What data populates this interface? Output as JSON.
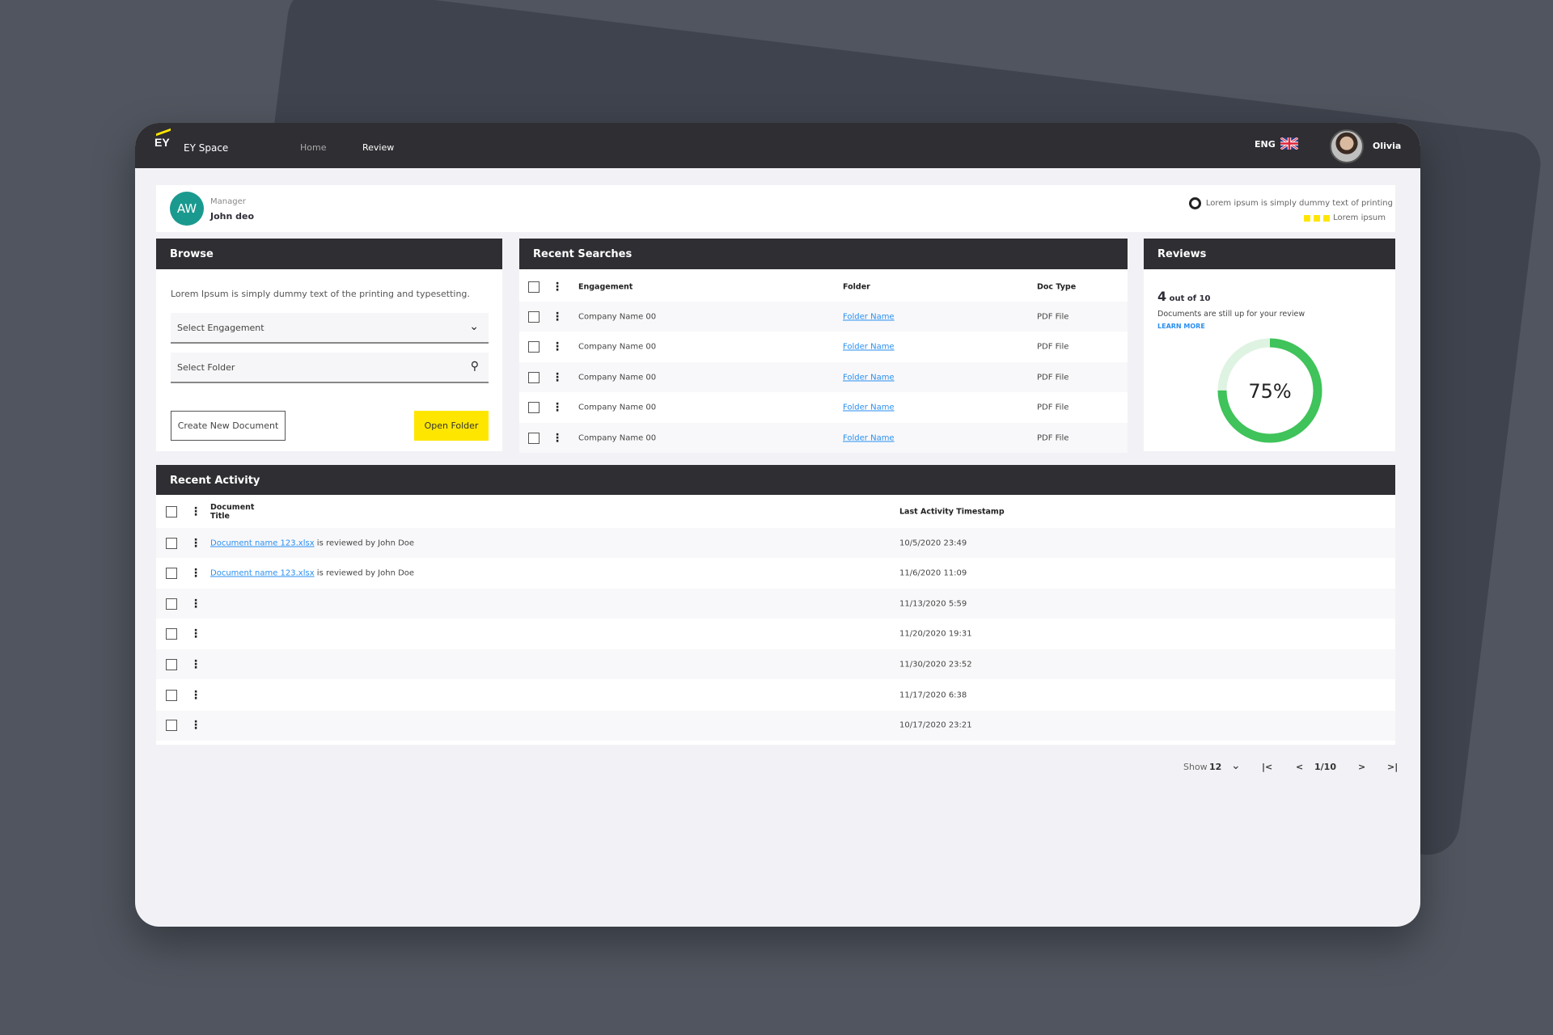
{
  "header": {
    "logo": "EY",
    "app_name": "EY Space",
    "nav": [
      "Home",
      "Review"
    ],
    "language": "ENG",
    "user_name": "Olivia"
  },
  "profile": {
    "initials": "AW",
    "role": "Manager",
    "name": "John deo",
    "info_text": "Lorem ipsum is simply dummy text of printing",
    "info_sub": "Lorem ipsum",
    "accent": "#ffe600",
    "avatar_color": "#1a9a8f"
  },
  "browse": {
    "title": "Browse",
    "description": "Lorem Ipsum is simply dummy text of the printing and typesetting.",
    "engagement_placeholder": "Select Engagement",
    "folder_placeholder": "Select Folder",
    "create_label": "Create New Document",
    "open_label": "Open Folder"
  },
  "recent_searches": {
    "title": "Recent Searches",
    "columns": [
      "Engagement",
      "Folder",
      "Doc Type"
    ],
    "rows": [
      {
        "engagement": "Company Name 00",
        "folder": "Folder Name",
        "doc_type": "PDF File"
      },
      {
        "engagement": "Company Name 00",
        "folder": "Folder Name",
        "doc_type": "PDF File"
      },
      {
        "engagement": "Company Name 00",
        "folder": "Folder Name",
        "doc_type": "PDF File"
      },
      {
        "engagement": "Company Name 00",
        "folder": "Folder Name",
        "doc_type": "PDF File"
      },
      {
        "engagement": "Company Name 00",
        "folder": "Folder Name",
        "doc_type": "PDF File"
      }
    ]
  },
  "reviews": {
    "title": "Reviews",
    "count": "4",
    "count_suffix": "out of 10",
    "description": "Documents are still up for your review",
    "learn_more": "LEARN MORE",
    "percent_label": "75%",
    "percent": 75,
    "color": "#3fc35a",
    "track_color": "#dff3e2"
  },
  "activity": {
    "title": "Recent Activity",
    "columns": [
      "Document Title",
      "Last Activity Timestamp"
    ],
    "rows": [
      {
        "doc": "Document name 123.xlsx",
        "text": " is reviewed by John Doe",
        "timestamp": "10/5/2020  23:49"
      },
      {
        "doc": "Document name 123.xlsx",
        "text": " is reviewed by John Doe",
        "timestamp": "11/6/2020  11:09"
      },
      {
        "doc": "",
        "text": "",
        "timestamp": "11/13/2020  5:59"
      },
      {
        "doc": "",
        "text": "",
        "timestamp": "11/20/2020 19:31"
      },
      {
        "doc": "",
        "text": "",
        "timestamp": "11/30/2020 23:52"
      },
      {
        "doc": "",
        "text": "",
        "timestamp": "11/17/2020  6:38"
      },
      {
        "doc": "",
        "text": "",
        "timestamp": "10/17/2020 23:21"
      }
    ]
  },
  "pagination": {
    "show_label": "Show",
    "page_size": "12",
    "page": "1/10"
  }
}
